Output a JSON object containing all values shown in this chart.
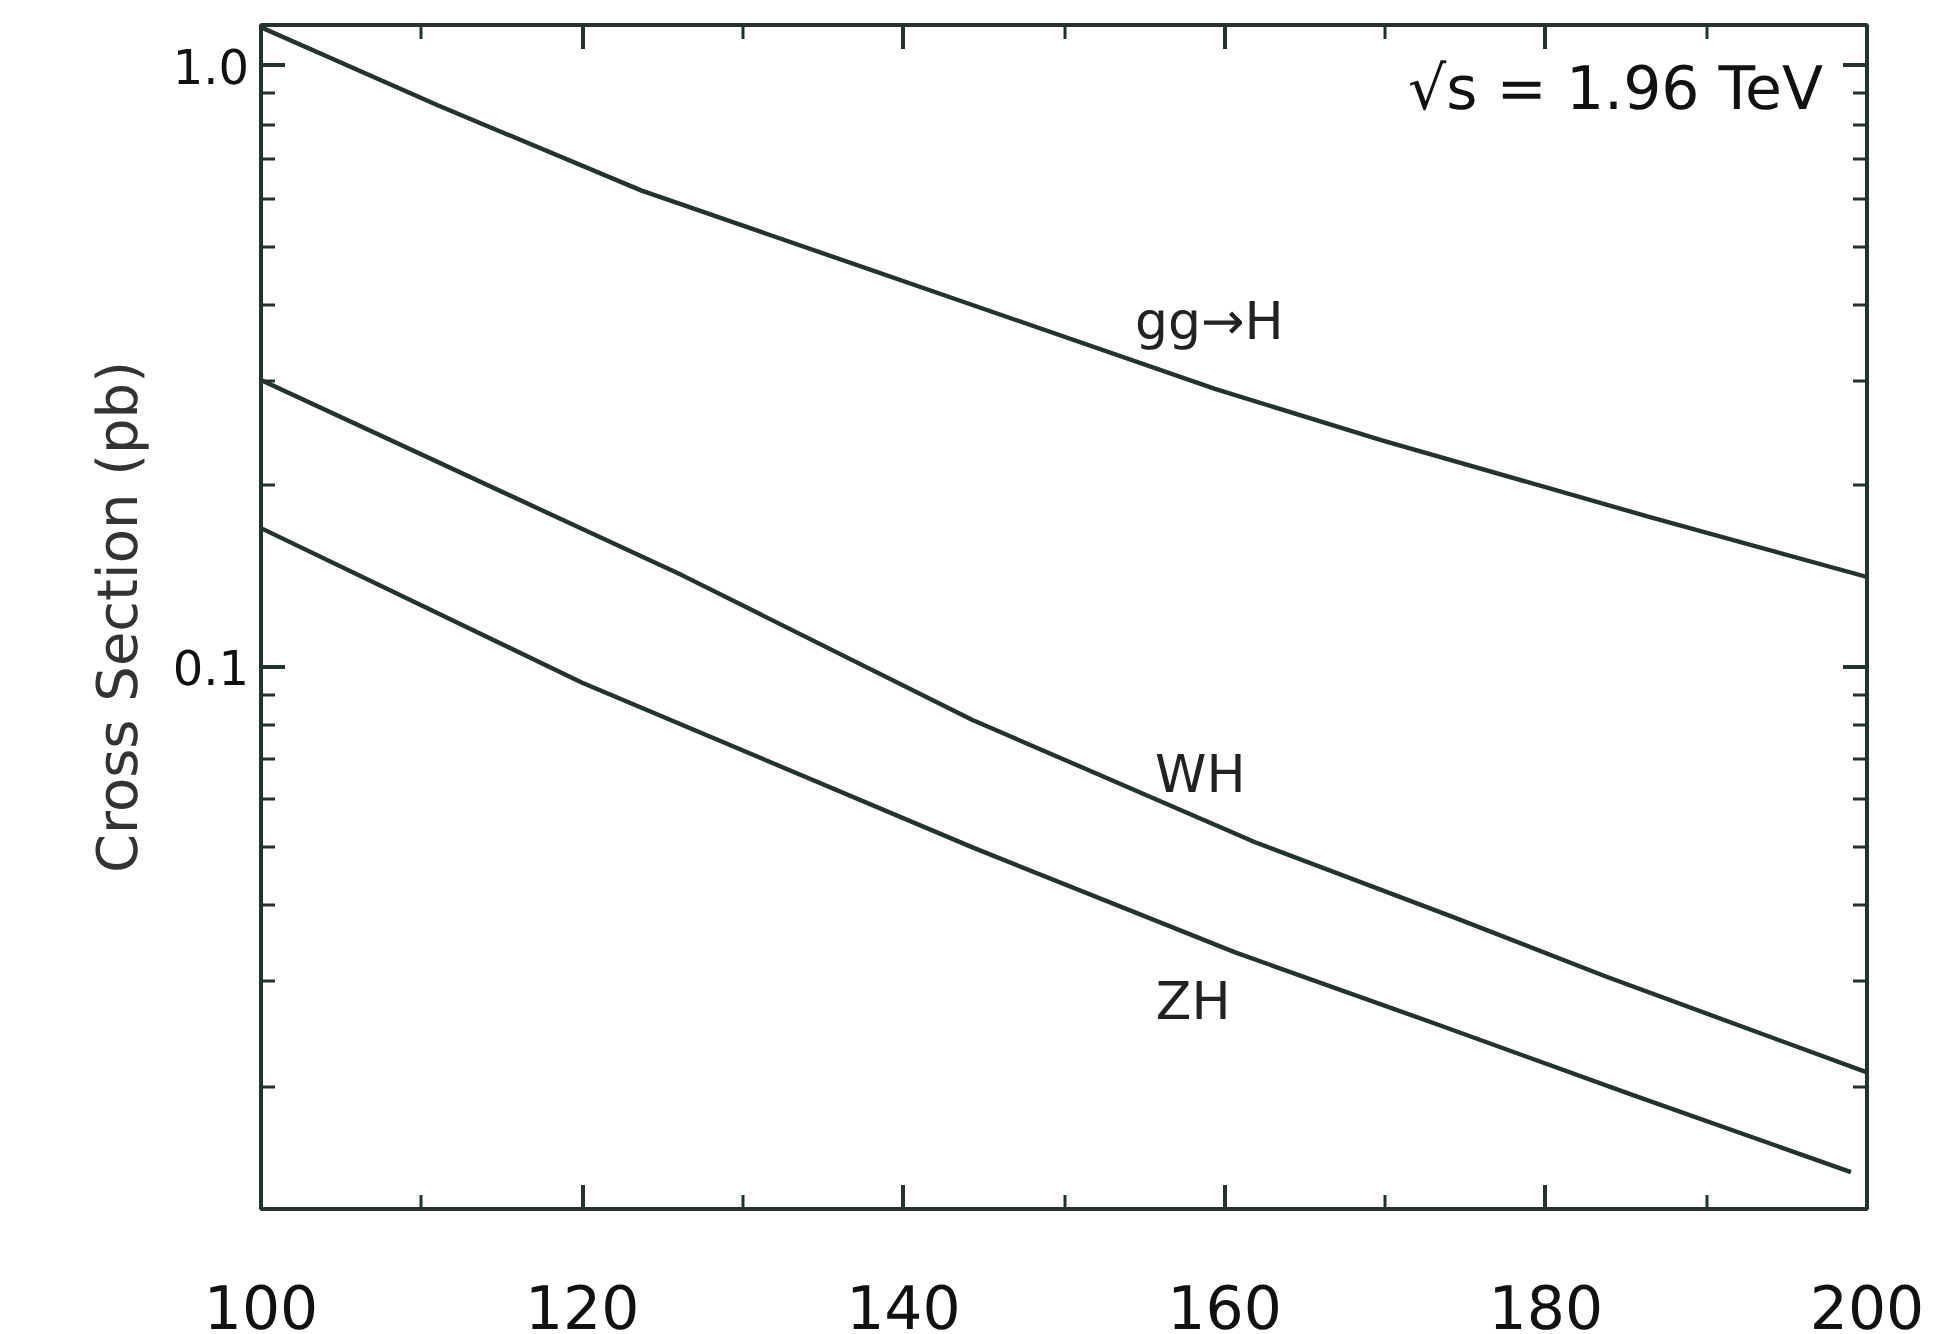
{
  "chart_data": {
    "type": "line",
    "ylabel": "Cross Section (pb)",
    "log": true,
    "xlim": [
      100,
      200
    ],
    "ylim": [
      0.0125,
      1.17
    ],
    "xticks": [
      100,
      {
        "value": 110,
        "label": null
      },
      120,
      {
        "value": 130,
        "label": null
      },
      140,
      {
        "value": 150,
        "label": null
      },
      160,
      {
        "value": 170,
        "label": null
      },
      180,
      {
        "value": 190,
        "label": null
      },
      200
    ],
    "yticks": [
      {
        "value": 0.02,
        "label": null
      },
      {
        "value": 0.03,
        "label": null
      },
      {
        "value": 0.04,
        "label": null
      },
      {
        "value": 0.05,
        "label": null
      },
      {
        "value": 0.06,
        "label": null
      },
      {
        "value": 0.07,
        "label": null
      },
      {
        "value": 0.08,
        "label": null
      },
      {
        "value": 0.09,
        "label": null
      },
      0.1,
      {
        "value": 0.2,
        "label": null
      },
      {
        "value": 0.3,
        "label": null
      },
      {
        "value": 0.4,
        "label": null
      },
      {
        "value": 0.5,
        "label": null
      },
      {
        "value": 0.6,
        "label": null
      },
      {
        "value": 0.7,
        "label": null
      },
      {
        "value": 0.8,
        "label": null
      },
      {
        "value": 0.9,
        "label": null
      },
      {
        "value": 1,
        "label": "1.0"
      }
    ],
    "grid": false,
    "legend": false,
    "marker": "none",
    "line_style": "solid",
    "annotations": [
      "√s = 1.96 TeV"
    ],
    "series": [
      {
        "name": "gg→H",
        "color": "#233330",
        "x": [
          100,
          111,
          123.7,
          144.3,
          159.4,
          169.8,
          186.6,
          200
        ],
        "values": [
          1.16,
          0.86,
          0.62,
          0.4,
          0.29,
          0.238,
          0.177,
          0.141
        ]
      },
      {
        "name": "WH",
        "color": "#233330",
        "x": [
          100,
          126.2,
          144.3,
          161.9,
          174.2,
          183.7,
          200
        ],
        "values": [
          0.3,
          0.142,
          0.0815,
          0.051,
          0.0383,
          0.0305,
          0.0211
        ]
      },
      {
        "name": "ZH",
        "color": "#233330",
        "x": [
          100,
          120,
          144.3,
          160.7,
          173,
          185.3,
          199
        ],
        "values": [
          0.17,
          0.094,
          0.05,
          0.0334,
          0.0255,
          0.0194,
          0.0144
        ]
      }
    ]
  }
}
